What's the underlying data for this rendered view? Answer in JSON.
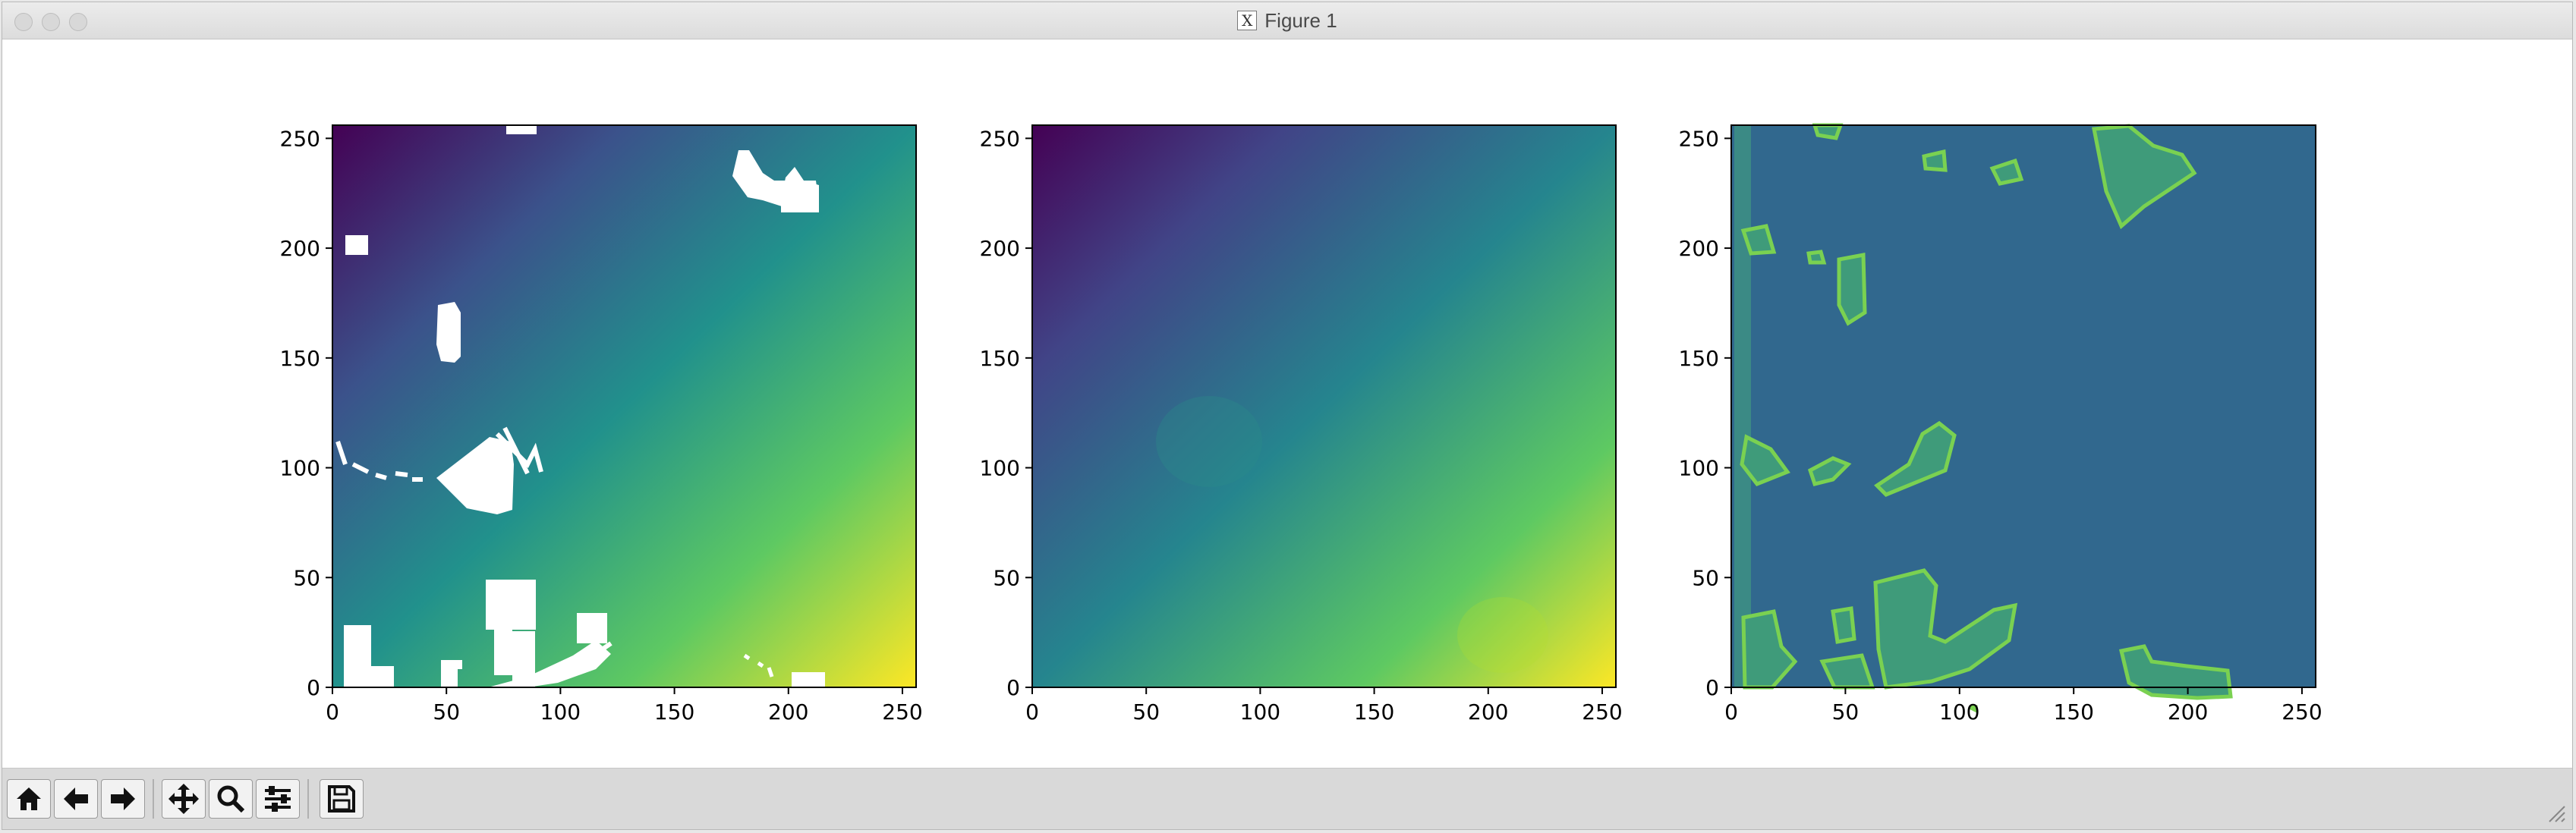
{
  "window": {
    "title": "Figure 1"
  },
  "toolbar": {
    "buttons": [
      {
        "name": "home-button",
        "icon": "home-icon"
      },
      {
        "name": "back-button",
        "icon": "arrow-left-icon"
      },
      {
        "name": "forward-button",
        "icon": "arrow-right-icon"
      },
      {
        "name": "pan-button",
        "icon": "move-icon"
      },
      {
        "name": "zoom-button",
        "icon": "magnifier-icon"
      },
      {
        "name": "configure-subplots-button",
        "icon": "sliders-icon"
      },
      {
        "name": "save-button",
        "icon": "floppy-disk-icon"
      }
    ]
  },
  "chart_data": [
    {
      "type": "heatmap",
      "title": "",
      "xlabel": "",
      "ylabel": "",
      "xlim": [
        0,
        256
      ],
      "ylim": [
        0,
        256
      ],
      "xticks": [
        0,
        50,
        100,
        150,
        200,
        250
      ],
      "yticks": [
        0,
        50,
        100,
        150,
        200,
        250
      ],
      "colormap": "viridis",
      "description_of_values": "sparse depth map, values increase toward lower-right, white gaps where no data"
    },
    {
      "type": "heatmap",
      "title": "",
      "xlabel": "",
      "ylabel": "",
      "xlim": [
        0,
        256
      ],
      "ylim": [
        0,
        256
      ],
      "xticks": [
        0,
        50,
        100,
        150,
        200,
        250
      ],
      "yticks": [
        0,
        50,
        100,
        150,
        200,
        250
      ],
      "colormap": "viridis"
    },
    {
      "type": "heatmap",
      "title": "",
      "xlabel": "",
      "ylabel": "",
      "xlim": [
        0,
        256
      ],
      "ylim": [
        0,
        256
      ],
      "xticks": [
        0,
        50,
        100,
        150,
        200,
        250
      ],
      "yticks": [
        0,
        50,
        100,
        150,
        200,
        250
      ],
      "colormap": "viridis"
    }
  ],
  "colors": {
    "viridis_dark": "#440154",
    "viridis_mid": "#21918c",
    "viridis_light": "#fde725",
    "panel3_background": "#31688e",
    "panel3_highlight": "#5ec962"
  }
}
